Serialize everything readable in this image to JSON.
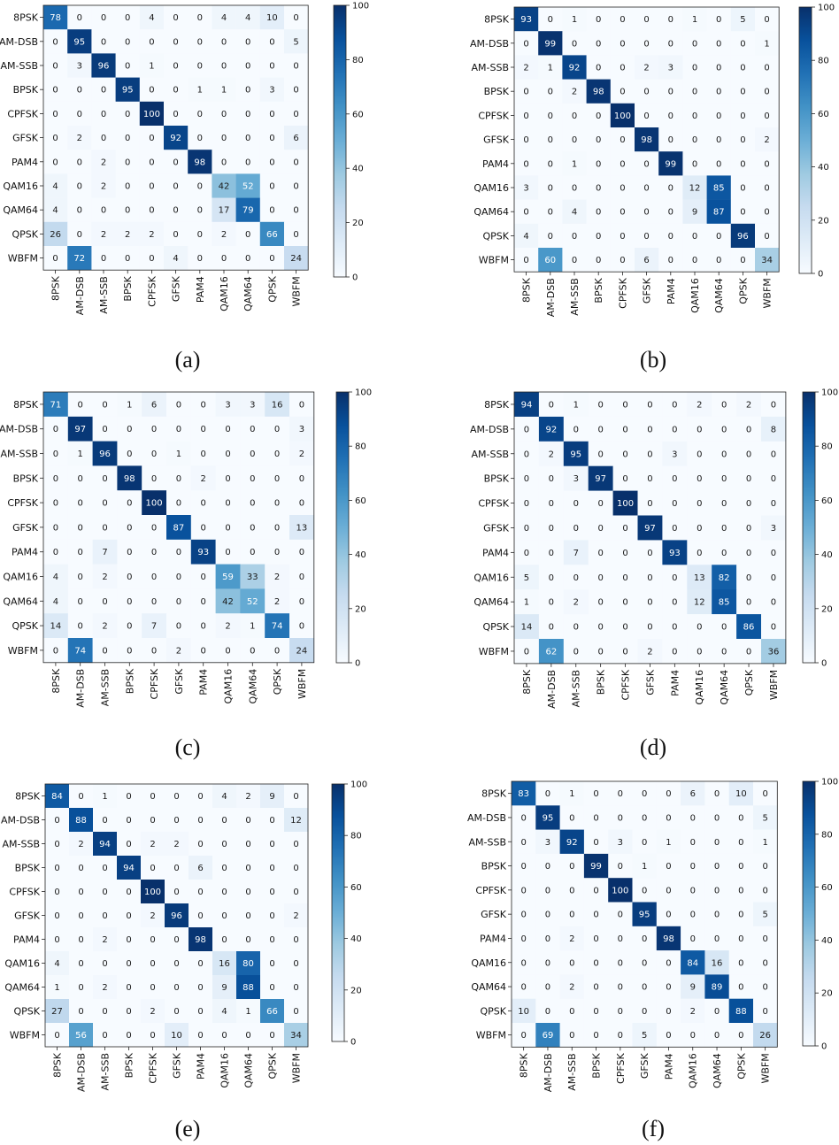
{
  "figure": {
    "labels": [
      "8PSK",
      "AM-DSB",
      "AM-SSB",
      "BPSK",
      "CPFSK",
      "GFSK",
      "PAM4",
      "QAM16",
      "QAM64",
      "QPSK",
      "WBFM"
    ],
    "colorbar_ticks": [
      "0",
      "20",
      "40",
      "60",
      "80",
      "100"
    ],
    "colors": {
      "scale": [
        "#f7fbff",
        "#deebf7",
        "#c6dbef",
        "#9ecae1",
        "#6baed6",
        "#4292c6",
        "#2171b5",
        "#08519c",
        "#08306b"
      ]
    }
  },
  "chart_data": [
    {
      "type": "heatmap",
      "caption": "(a)",
      "vmin": 0,
      "vmax": 100,
      "matrix": [
        [
          78,
          0,
          0,
          0,
          4,
          0,
          0,
          4,
          4,
          10,
          0
        ],
        [
          0,
          95,
          0,
          0,
          0,
          0,
          0,
          0,
          0,
          0,
          5
        ],
        [
          0,
          3,
          96,
          0,
          1,
          0,
          0,
          0,
          0,
          0,
          0
        ],
        [
          0,
          0,
          0,
          95,
          0,
          0,
          1,
          1,
          0,
          3,
          0
        ],
        [
          0,
          0,
          0,
          0,
          100,
          0,
          0,
          0,
          0,
          0,
          0
        ],
        [
          0,
          2,
          0,
          0,
          0,
          92,
          0,
          0,
          0,
          0,
          6
        ],
        [
          0,
          0,
          2,
          0,
          0,
          0,
          98,
          0,
          0,
          0,
          0
        ],
        [
          4,
          0,
          2,
          0,
          0,
          0,
          0,
          42,
          52,
          0,
          0
        ],
        [
          4,
          0,
          0,
          0,
          0,
          0,
          0,
          17,
          79,
          0,
          0
        ],
        [
          26,
          0,
          2,
          2,
          2,
          0,
          0,
          2,
          0,
          66,
          0
        ],
        [
          0,
          72,
          0,
          0,
          0,
          4,
          0,
          0,
          0,
          0,
          24
        ]
      ]
    },
    {
      "type": "heatmap",
      "caption": "(b)",
      "vmin": 0,
      "vmax": 100,
      "matrix": [
        [
          93,
          0,
          1,
          0,
          0,
          0,
          0,
          1,
          0,
          5,
          0
        ],
        [
          0,
          99,
          0,
          0,
          0,
          0,
          0,
          0,
          0,
          0,
          1
        ],
        [
          2,
          1,
          92,
          0,
          0,
          2,
          3,
          0,
          0,
          0,
          0
        ],
        [
          0,
          0,
          2,
          98,
          0,
          0,
          0,
          0,
          0,
          0,
          0
        ],
        [
          0,
          0,
          0,
          0,
          100,
          0,
          0,
          0,
          0,
          0,
          0
        ],
        [
          0,
          0,
          0,
          0,
          0,
          98,
          0,
          0,
          0,
          0,
          2
        ],
        [
          0,
          0,
          1,
          0,
          0,
          0,
          99,
          0,
          0,
          0,
          0
        ],
        [
          3,
          0,
          0,
          0,
          0,
          0,
          0,
          12,
          85,
          0,
          0
        ],
        [
          0,
          0,
          4,
          0,
          0,
          0,
          0,
          9,
          87,
          0,
          0
        ],
        [
          4,
          0,
          0,
          0,
          0,
          0,
          0,
          0,
          0,
          96,
          0
        ],
        [
          0,
          60,
          0,
          0,
          0,
          6,
          0,
          0,
          0,
          0,
          34
        ]
      ]
    },
    {
      "type": "heatmap",
      "caption": "(c)",
      "vmin": 0,
      "vmax": 100,
      "matrix": [
        [
          71,
          0,
          0,
          1,
          6,
          0,
          0,
          3,
          3,
          16,
          0
        ],
        [
          0,
          97,
          0,
          0,
          0,
          0,
          0,
          0,
          0,
          0,
          3
        ],
        [
          0,
          1,
          96,
          0,
          0,
          1,
          0,
          0,
          0,
          0,
          2
        ],
        [
          0,
          0,
          0,
          98,
          0,
          0,
          2,
          0,
          0,
          0,
          0
        ],
        [
          0,
          0,
          0,
          0,
          100,
          0,
          0,
          0,
          0,
          0,
          0
        ],
        [
          0,
          0,
          0,
          0,
          0,
          87,
          0,
          0,
          0,
          0,
          13
        ],
        [
          0,
          0,
          7,
          0,
          0,
          0,
          93,
          0,
          0,
          0,
          0
        ],
        [
          4,
          0,
          2,
          0,
          0,
          0,
          0,
          59,
          33,
          2,
          0
        ],
        [
          4,
          0,
          0,
          0,
          0,
          0,
          0,
          42,
          52,
          2,
          0
        ],
        [
          14,
          0,
          2,
          0,
          7,
          0,
          0,
          2,
          1,
          74,
          0
        ],
        [
          0,
          74,
          0,
          0,
          0,
          2,
          0,
          0,
          0,
          0,
          24
        ]
      ]
    },
    {
      "type": "heatmap",
      "caption": "(d)",
      "vmin": 0,
      "vmax": 100,
      "matrix": [
        [
          94,
          0,
          1,
          0,
          0,
          0,
          0,
          2,
          0,
          2,
          0
        ],
        [
          0,
          92,
          0,
          0,
          0,
          0,
          0,
          0,
          0,
          0,
          8
        ],
        [
          0,
          2,
          95,
          0,
          0,
          0,
          3,
          0,
          0,
          0,
          0
        ],
        [
          0,
          0,
          3,
          97,
          0,
          0,
          0,
          0,
          0,
          0,
          0
        ],
        [
          0,
          0,
          0,
          0,
          100,
          0,
          0,
          0,
          0,
          0,
          0
        ],
        [
          0,
          0,
          0,
          0,
          0,
          97,
          0,
          0,
          0,
          0,
          3
        ],
        [
          0,
          0,
          7,
          0,
          0,
          0,
          93,
          0,
          0,
          0,
          0
        ],
        [
          5,
          0,
          0,
          0,
          0,
          0,
          0,
          13,
          82,
          0,
          0
        ],
        [
          1,
          0,
          2,
          0,
          0,
          0,
          0,
          12,
          85,
          0,
          0
        ],
        [
          14,
          0,
          0,
          0,
          0,
          0,
          0,
          0,
          0,
          86,
          0
        ],
        [
          0,
          62,
          0,
          0,
          0,
          2,
          0,
          0,
          0,
          0,
          36
        ]
      ]
    },
    {
      "type": "heatmap",
      "caption": "(e)",
      "vmin": 0,
      "vmax": 100,
      "matrix": [
        [
          84,
          0,
          1,
          0,
          0,
          0,
          0,
          4,
          2,
          9,
          0
        ],
        [
          0,
          88,
          0,
          0,
          0,
          0,
          0,
          0,
          0,
          0,
          12
        ],
        [
          0,
          2,
          94,
          0,
          2,
          2,
          0,
          0,
          0,
          0,
          0
        ],
        [
          0,
          0,
          0,
          94,
          0,
          0,
          6,
          0,
          0,
          0,
          0
        ],
        [
          0,
          0,
          0,
          0,
          100,
          0,
          0,
          0,
          0,
          0,
          0
        ],
        [
          0,
          0,
          0,
          0,
          2,
          96,
          0,
          0,
          0,
          0,
          2
        ],
        [
          0,
          0,
          2,
          0,
          0,
          0,
          98,
          0,
          0,
          0,
          0
        ],
        [
          4,
          0,
          0,
          0,
          0,
          0,
          0,
          16,
          80,
          0,
          0
        ],
        [
          1,
          0,
          2,
          0,
          0,
          0,
          0,
          9,
          88,
          0,
          0
        ],
        [
          27,
          0,
          0,
          0,
          2,
          0,
          0,
          4,
          1,
          66,
          0
        ],
        [
          0,
          56,
          0,
          0,
          0,
          10,
          0,
          0,
          0,
          0,
          34
        ]
      ]
    },
    {
      "type": "heatmap",
      "caption": "(f)",
      "vmin": 0,
      "vmax": 100,
      "matrix": [
        [
          83,
          0,
          1,
          0,
          0,
          0,
          0,
          6,
          0,
          10,
          0
        ],
        [
          0,
          95,
          0,
          0,
          0,
          0,
          0,
          0,
          0,
          0,
          5
        ],
        [
          0,
          3,
          92,
          0,
          3,
          0,
          1,
          0,
          0,
          0,
          1
        ],
        [
          0,
          0,
          0,
          99,
          0,
          1,
          0,
          0,
          0,
          0,
          0
        ],
        [
          0,
          0,
          0,
          0,
          100,
          0,
          0,
          0,
          0,
          0,
          0
        ],
        [
          0,
          0,
          0,
          0,
          0,
          95,
          0,
          0,
          0,
          0,
          5
        ],
        [
          0,
          0,
          2,
          0,
          0,
          0,
          98,
          0,
          0,
          0,
          0
        ],
        [
          0,
          0,
          0,
          0,
          0,
          0,
          0,
          84,
          16,
          0,
          0
        ],
        [
          0,
          0,
          2,
          0,
          0,
          0,
          0,
          9,
          89,
          0,
          0
        ],
        [
          10,
          0,
          0,
          0,
          0,
          0,
          0,
          2,
          0,
          88,
          0
        ],
        [
          0,
          69,
          0,
          0,
          0,
          5,
          0,
          0,
          0,
          0,
          26
        ]
      ]
    }
  ]
}
